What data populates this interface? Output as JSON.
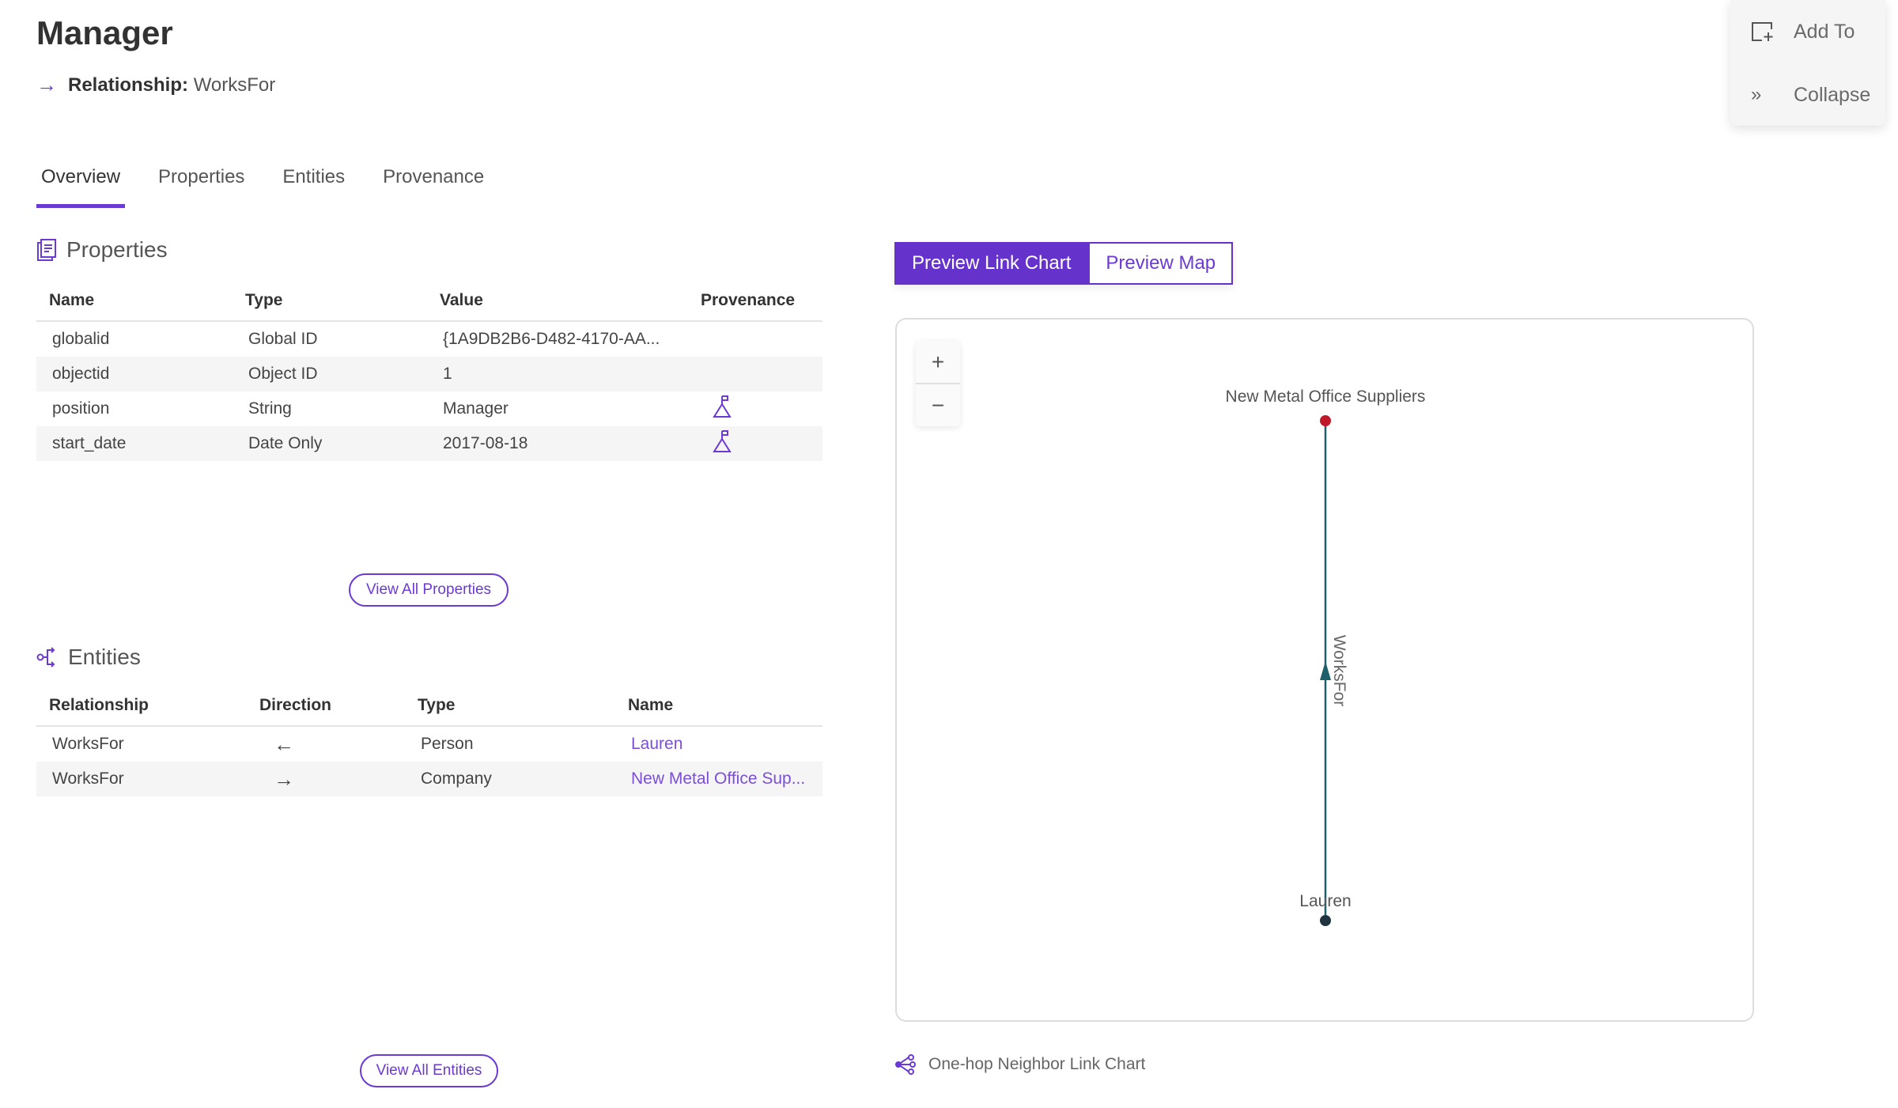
{
  "header": {
    "title": "Manager",
    "relationship_label": "Relationship:",
    "relationship_value": "WorksFor"
  },
  "tabs": [
    {
      "label": "Overview",
      "active": true
    },
    {
      "label": "Properties"
    },
    {
      "label": "Entities"
    },
    {
      "label": "Provenance"
    }
  ],
  "properties": {
    "title": "Properties",
    "columns": [
      "Name",
      "Type",
      "Value",
      "Provenance"
    ],
    "rows": [
      {
        "name": "globalid",
        "type": "Global ID",
        "value": "{1A9DB2B6-D482-4170-AA...",
        "provenance": false
      },
      {
        "name": "objectid",
        "type": "Object ID",
        "value": "1",
        "provenance": false
      },
      {
        "name": "position",
        "type": "String",
        "value": "Manager",
        "provenance": true
      },
      {
        "name": "start_date",
        "type": "Date Only",
        "value": "2017-08-18",
        "provenance": true
      }
    ],
    "view_all": "View All Properties"
  },
  "entities": {
    "title": "Entities",
    "columns": [
      "Relationship",
      "Direction",
      "Type",
      "Name"
    ],
    "rows": [
      {
        "relationship": "WorksFor",
        "direction": "←",
        "type": "Person",
        "name": "Lauren"
      },
      {
        "relationship": "WorksFor",
        "direction": "→",
        "type": "Company",
        "name": "New Metal Office Sup..."
      }
    ],
    "view_all": "View All Entities"
  },
  "preview": {
    "link_chart": "Preview Link Chart",
    "map": "Preview Map",
    "active": "link_chart"
  },
  "link_chart": {
    "zoom_in": "+",
    "zoom_out": "−",
    "source": {
      "label": "Lauren",
      "color": "#1f3440"
    },
    "target": {
      "label": "New Metal Office Suppliers",
      "color": "#c0192a"
    },
    "edge_label": "WorksFor",
    "edge_color": "#1d5f6a",
    "footer": "One-hop Neighbor Link Chart"
  },
  "panel": {
    "add_to": "Add To",
    "collapse": "Collapse"
  },
  "colors": {
    "accent": "#6533cc",
    "link": "#7a4fd6"
  }
}
